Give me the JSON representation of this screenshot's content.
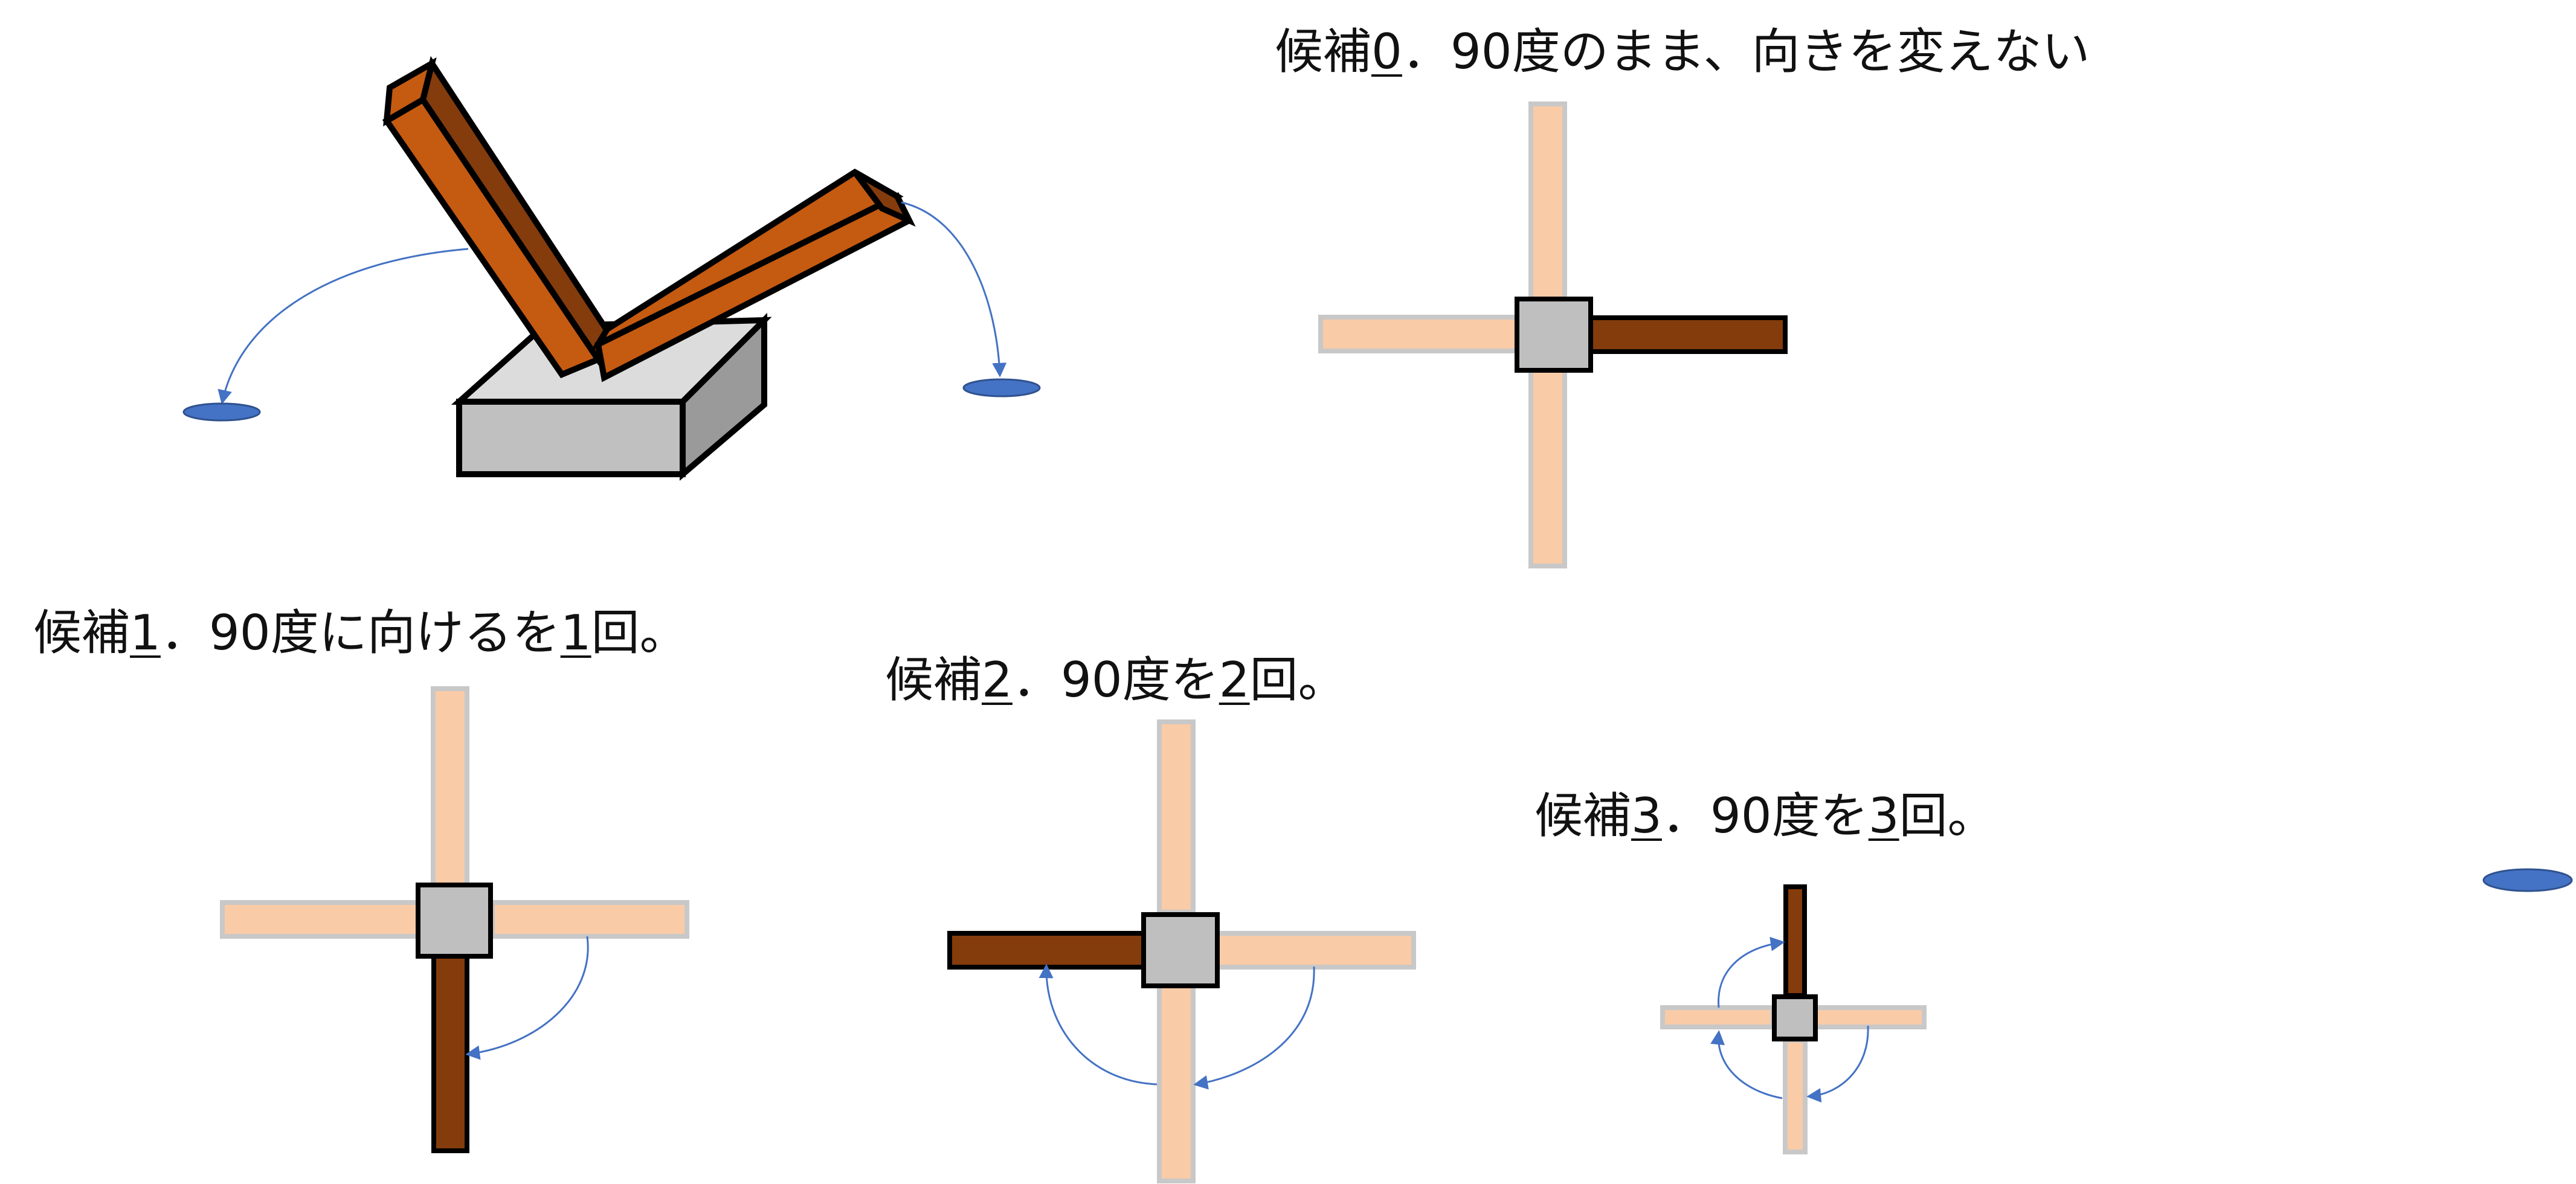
{
  "captions": [
    {
      "prefix": "候補",
      "number": "0",
      "text": "．90度のまま、向きを変えない",
      "suffix": ""
    },
    {
      "prefix": "候補",
      "number": "1",
      "text": "．90度に向けるを",
      "number2": "1",
      "suffix": "回。"
    },
    {
      "prefix": "候補",
      "number": "2",
      "text": "．90度を",
      "number2": "2",
      "suffix": "回。"
    },
    {
      "prefix": "候補",
      "number": "3",
      "text": "．90度を",
      "number2": "3",
      "suffix": "回。"
    }
  ],
  "colors": {
    "arm_active": "#843c0c",
    "arm_3d": "#c55a11",
    "arm_inactive": "#f9cba7",
    "hub": "#bfbfbf",
    "arrow": "#4472c4"
  }
}
